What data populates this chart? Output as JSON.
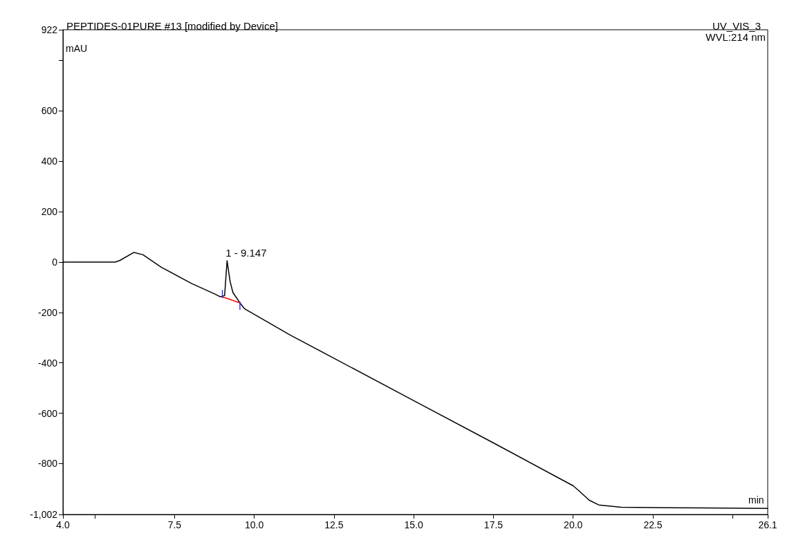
{
  "chart_data": {
    "type": "line",
    "title": "PEPTIDES-01PURE #13 [modified by Device]",
    "subtitle": "UV_VIS_3",
    "xlabel": "min",
    "ylabel": "mAU",
    "annotations": [
      "WVL:214 nm",
      {
        "text": "1 - 9.147",
        "x": 9.147,
        "y": 5
      }
    ],
    "xlim": [
      4.0,
      26.1
    ],
    "xticks": [
      {
        "value": 4.0,
        "label": "4.0"
      },
      {
        "value": 5.0,
        "label": null
      },
      {
        "value": 7.5,
        "label": "7.5"
      },
      {
        "value": 10.0,
        "label": "10.0"
      },
      {
        "value": 12.5,
        "label": "12.5"
      },
      {
        "value": 15.0,
        "label": "15.0"
      },
      {
        "value": 17.5,
        "label": "17.5"
      },
      {
        "value": 20.0,
        "label": "20.0"
      },
      {
        "value": 22.5,
        "label": "22.5"
      },
      {
        "value": 25.0,
        "label": null
      },
      {
        "value": 26.1,
        "label": "26.1"
      }
    ],
    "ylim": [
      -1002,
      922
    ],
    "yticks": [
      {
        "value": -1002,
        "label": "-1,002"
      },
      -800,
      -600,
      -400,
      -200,
      0,
      200,
      400,
      600,
      {
        "value": 800,
        "label": null
      },
      922
    ],
    "marker": "none",
    "grid": false,
    "series": [
      {
        "type": "line",
        "color": "#000000",
        "x": [
          4.0,
          5.64,
          5.78,
          6.22,
          6.51,
          7.09,
          8.03,
          8.75,
          8.93,
          9.07,
          9.147,
          9.24,
          9.33,
          9.55,
          9.69,
          11.13,
          12.5,
          15.0,
          17.5,
          20.0,
          20.2,
          20.5,
          20.8,
          21.5,
          23.0,
          26.1
        ],
        "values": [
          0,
          0,
          6,
          38,
          29,
          -21,
          -85,
          -126,
          -138,
          -133,
          5,
          -76,
          -121,
          -162,
          -185,
          -290,
          -382,
          -550,
          -718,
          -888,
          -910,
          -945,
          -964,
          -973,
          -975,
          -978
        ]
      },
      {
        "color": "#ff0000",
        "x": [
          9.0,
          9.55
        ],
        "values": [
          -138,
          -162
        ]
      }
    ]
  }
}
